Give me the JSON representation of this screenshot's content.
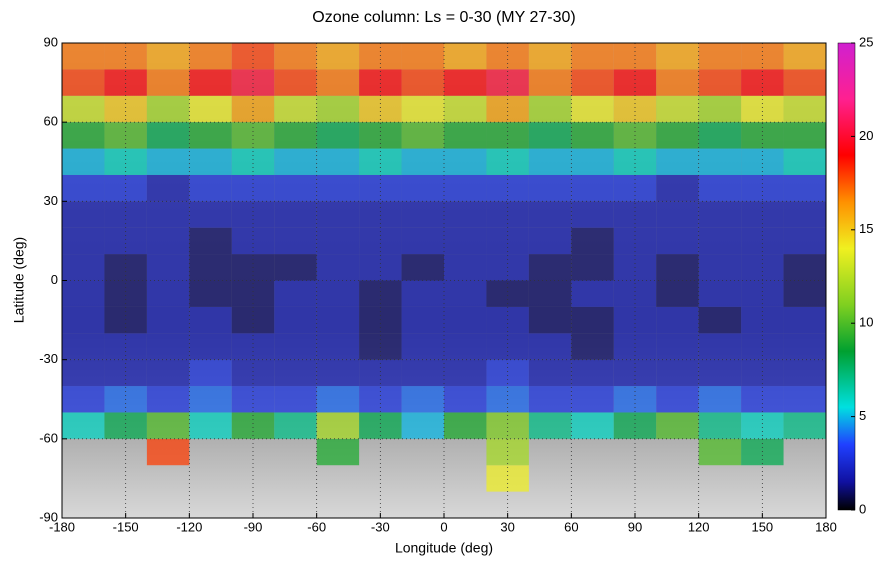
{
  "chart_data": {
    "type": "heatmap",
    "title": "Ozone column: Ls = 0-30 (MY 27-30)",
    "xlabel": "Longitude (deg)",
    "ylabel": "Latitude (deg)",
    "xlim": [
      -180,
      180
    ],
    "ylim": [
      -90,
      90
    ],
    "xticks": [
      -180,
      -150,
      -120,
      -90,
      -60,
      -30,
      0,
      30,
      60,
      90,
      120,
      150,
      180
    ],
    "yticks": [
      -90,
      -60,
      -30,
      0,
      30,
      60,
      90
    ],
    "grid": true,
    "clim": [
      0,
      25
    ],
    "cticks": [
      0,
      5,
      10,
      15,
      20,
      25
    ],
    "x_bins": [
      -180,
      -160,
      -140,
      -120,
      -100,
      -80,
      -60,
      -40,
      -20,
      0,
      20,
      40,
      60,
      80,
      100,
      120,
      140,
      160,
      180
    ],
    "y_bins": [
      -90,
      -80,
      -70,
      -60,
      -50,
      -40,
      -30,
      -20,
      -10,
      0,
      10,
      20,
      30,
      40,
      50,
      60,
      70,
      80,
      90
    ],
    "values": [
      [
        null,
        null,
        null,
        null,
        null,
        null,
        null,
        null,
        null,
        null,
        null,
        null,
        null,
        null,
        null,
        null,
        null,
        null
      ],
      [
        null,
        null,
        null,
        null,
        null,
        null,
        null,
        null,
        null,
        null,
        14,
        null,
        null,
        null,
        null,
        null,
        null,
        null
      ],
      [
        null,
        null,
        18,
        null,
        null,
        null,
        9,
        null,
        null,
        null,
        12,
        null,
        null,
        null,
        null,
        10,
        8,
        null
      ],
      [
        6,
        8,
        10,
        6,
        9,
        7,
        12,
        8,
        5,
        9,
        11,
        7,
        6,
        8,
        10,
        7,
        6,
        7
      ],
      [
        3,
        4,
        3,
        4,
        3,
        3,
        4,
        3,
        4,
        3,
        4,
        3,
        3,
        4,
        3,
        4,
        3,
        3
      ],
      [
        2,
        2,
        2,
        3,
        2,
        2,
        2,
        2,
        2,
        2,
        3,
        2,
        2,
        2,
        2,
        2,
        2,
        2
      ],
      [
        2,
        2,
        2,
        2,
        2,
        2,
        2,
        1,
        2,
        2,
        2,
        2,
        1,
        2,
        2,
        2,
        2,
        2
      ],
      [
        2,
        1,
        2,
        2,
        1,
        2,
        2,
        1,
        2,
        2,
        2,
        1,
        1,
        2,
        2,
        1,
        2,
        2
      ],
      [
        2,
        1,
        2,
        1,
        1,
        2,
        2,
        1,
        2,
        2,
        1,
        1,
        2,
        2,
        1,
        2,
        2,
        1
      ],
      [
        2,
        1,
        2,
        1,
        1,
        1,
        2,
        2,
        1,
        2,
        2,
        1,
        1,
        2,
        1,
        2,
        2,
        1
      ],
      [
        2,
        2,
        2,
        1,
        2,
        2,
        2,
        2,
        2,
        2,
        2,
        2,
        1,
        2,
        2,
        2,
        2,
        2
      ],
      [
        2,
        2,
        2,
        2,
        2,
        2,
        2,
        2,
        2,
        2,
        2,
        2,
        2,
        2,
        2,
        2,
        2,
        2
      ],
      [
        3,
        3,
        2,
        3,
        3,
        3,
        3,
        3,
        3,
        3,
        3,
        3,
        3,
        3,
        2,
        3,
        3,
        3
      ],
      [
        5,
        6,
        5,
        5,
        6,
        5,
        5,
        6,
        5,
        5,
        6,
        5,
        5,
        6,
        5,
        5,
        5,
        6
      ],
      [
        9,
        10,
        8,
        9,
        10,
        9,
        8,
        9,
        10,
        9,
        9,
        8,
        9,
        10,
        9,
        8,
        9,
        9
      ],
      [
        13,
        15,
        12,
        14,
        16,
        13,
        12,
        15,
        14,
        13,
        16,
        12,
        14,
        15,
        13,
        12,
        14,
        13
      ],
      [
        18,
        19,
        17,
        19,
        20,
        18,
        17,
        19,
        18,
        19,
        20,
        17,
        18,
        19,
        17,
        18,
        19,
        18
      ],
      [
        17,
        17,
        16,
        17,
        18,
        17,
        16,
        17,
        17,
        16,
        17,
        16,
        17,
        17,
        16,
        17,
        17,
        16
      ]
    ]
  }
}
